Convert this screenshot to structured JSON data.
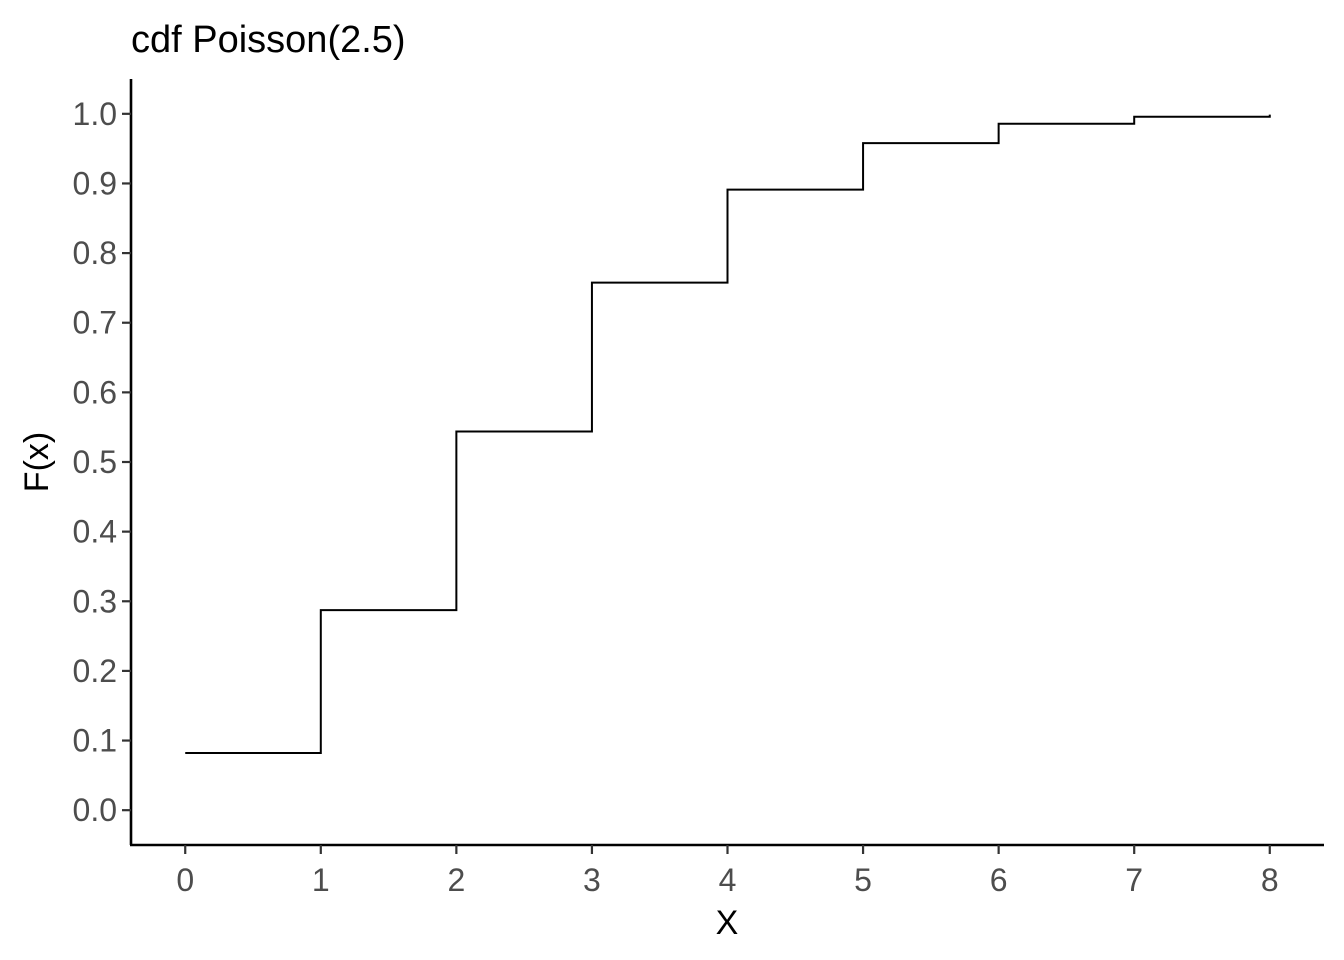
{
  "chart_data": {
    "type": "line",
    "step": true,
    "title": "cdf Poisson(2.5)",
    "xlabel": "X",
    "ylabel": "F(x)",
    "xlim": [
      -0.4,
      8.4
    ],
    "ylim": [
      -0.05,
      1.05
    ],
    "x_ticks": [
      0,
      1,
      2,
      3,
      4,
      5,
      6,
      7,
      8
    ],
    "x_tick_labels": [
      "0",
      "1",
      "2",
      "3",
      "4",
      "5",
      "6",
      "7",
      "8"
    ],
    "y_ticks": [
      0,
      0.1,
      0.2,
      0.3,
      0.4,
      0.5,
      0.6,
      0.7,
      0.8,
      0.9,
      1.0
    ],
    "y_tick_labels": [
      "0.0",
      "0.1",
      "0.2",
      "0.3",
      "0.4",
      "0.5",
      "0.6",
      "0.7",
      "0.8",
      "0.9",
      "1.0"
    ],
    "grid": false,
    "line_color": "#000000",
    "series": [
      {
        "x": [
          0,
          1,
          2,
          3,
          4,
          5,
          6,
          7,
          8
        ],
        "y": [
          0.0821,
          0.2873,
          0.5438,
          0.7576,
          0.8912,
          0.958,
          0.9858,
          0.9958,
          0.9989
        ]
      }
    ]
  }
}
